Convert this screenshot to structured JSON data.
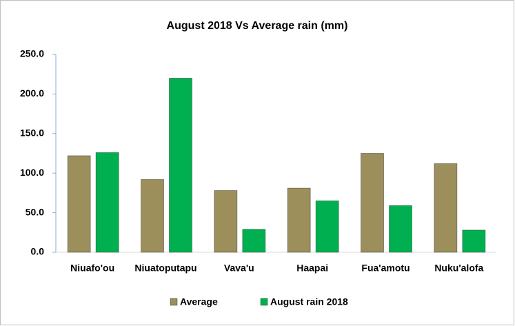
{
  "chart_data": {
    "type": "bar",
    "title": "August 2018 Vs Average rain (mm)",
    "categories": [
      "Niuafo'ou",
      "Niuatoputapu",
      "Vava'u",
      "Haapai",
      "Fua'amotu",
      "Nuku'alofa"
    ],
    "series": [
      {
        "name": "Average",
        "color": "#9c8f5c",
        "values": [
          122,
          92,
          78,
          81,
          125,
          112
        ]
      },
      {
        "name": "August rain 2018",
        "color": "#00b050",
        "values": [
          126,
          220,
          29,
          65,
          59,
          28
        ]
      }
    ],
    "ylim": [
      0,
      250
    ],
    "yticks": [
      {
        "value": 0,
        "label": "0.0"
      },
      {
        "value": 50,
        "label": "50.0"
      },
      {
        "value": 100,
        "label": "100.0"
      },
      {
        "value": 150,
        "label": "150.0"
      },
      {
        "value": 200,
        "label": "200.0"
      },
      {
        "value": 250,
        "label": "250.0"
      }
    ],
    "grid": false,
    "legend": "bottom"
  }
}
